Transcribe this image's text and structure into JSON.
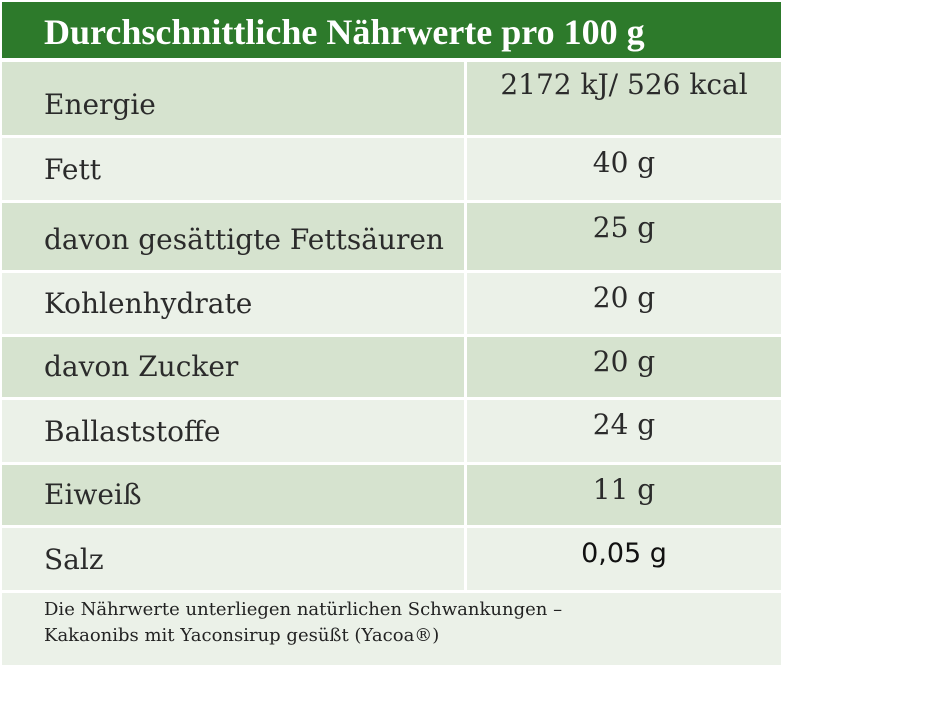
{
  "title": "Durchschnittliche Nährwerte pro 100 g",
  "rows": [
    {
      "label": "Energie",
      "value": "2172 kJ/ 526 kcal"
    },
    {
      "label": "Fett",
      "value": "40 g"
    },
    {
      "label": "davon gesättigte Fettsäuren",
      "value": "25 g"
    },
    {
      "label": "Kohlenhydrate",
      "value": "20 g"
    },
    {
      "label": "davon Zucker",
      "value": "20 g"
    },
    {
      "label": "Ballaststoffe",
      "value": "24 g"
    },
    {
      "label": "Eiweiß",
      "value": "11 g"
    },
    {
      "label": "Salz",
      "value": "0,05 g"
    }
  ],
  "footer": {
    "line1": "Die Nährwerte unterliegen natürlichen Schwankungen –",
    "line2": "Kakaonibs mit Yaconsirup gesüßt (Yacoa®)"
  },
  "colors": {
    "header_bg": "#2d7a2b",
    "row_dark": "#d6e3cf",
    "row_light": "#ebf1e8"
  }
}
